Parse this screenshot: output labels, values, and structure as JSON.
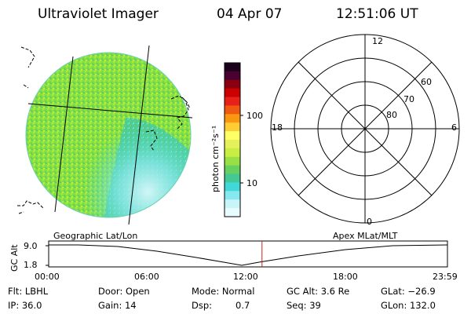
{
  "header": {
    "instrument": "Ultraviolet Imager",
    "date": "04 Apr 07",
    "time": "12:51:06 UT"
  },
  "colorbar": {
    "unit_label": "photon cm⁻²s⁻¹",
    "ticks": [
      "100",
      "10"
    ],
    "colors": [
      "#1a001a",
      "#4a0030",
      "#8a0010",
      "#cc0000",
      "#e8201a",
      "#f05a10",
      "#f89810",
      "#ffcc33",
      "#ffff66",
      "#e6f05a",
      "#c8ee44",
      "#99e044",
      "#66d060",
      "#44c896",
      "#40d8d8",
      "#88e8f0",
      "#c8f4fa",
      "#e8fcff"
    ]
  },
  "polar_plot": {
    "mlt_labels": [
      "12",
      "18",
      "6",
      "0"
    ],
    "lat_labels": [
      "60",
      "70",
      "80"
    ]
  },
  "timeline": {
    "left_title": "Geographic Lat/Lon",
    "right_title": "Apex MLat/MLT",
    "y_axis_label": "GC Alt",
    "y_ticks": [
      "9.0",
      "1.8"
    ],
    "x_ticks": [
      "00:00",
      "06:00",
      "12:00",
      "18:00",
      "23:59"
    ],
    "current_time_fraction": 0.535,
    "marker_color": "#cc2222"
  },
  "info": {
    "flt": "Flt: LBHL",
    "door": "Door: Open",
    "mode": "Mode: Normal",
    "gc_alt": "GC Alt: 3.6 Re",
    "glat": "GLat: −26.9",
    "ip": "IP: 36.0",
    "gain": "Gain: 14",
    "dsp_label": "Dsp:",
    "dsp_value": "0.7",
    "seq": "Seq: 39",
    "glon": "GLon: 132.0"
  }
}
